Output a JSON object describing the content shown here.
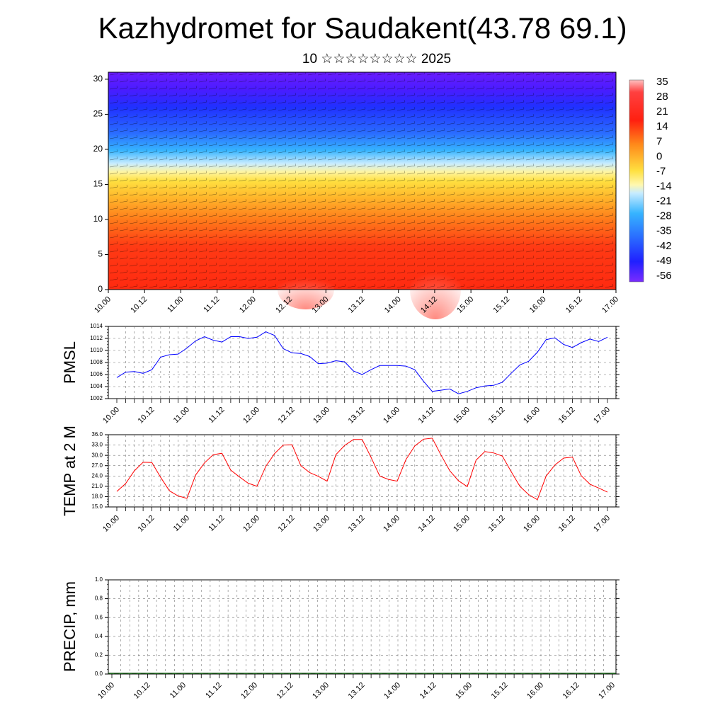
{
  "header": {
    "title": "Kazhydromet for Saudakent(43.78 69.1)",
    "subtitle": "10 ☆☆☆☆☆☆☆☆ 2025"
  },
  "chart_data": [
    {
      "type": "heatmap",
      "name": "upper-air-temperature-wind",
      "ylim": [
        0,
        31
      ],
      "yticks": [
        0,
        5,
        10,
        15,
        20,
        25,
        30
      ],
      "x_tick_labels": [
        "10.00",
        "10.12",
        "11.00",
        "11.12",
        "12.00",
        "12.12",
        "13.00",
        "13.12",
        "14.00",
        "14.12",
        "15.00",
        "15.12",
        "16.00",
        "16.12",
        "17.00"
      ],
      "colorbar_labels": [
        "35",
        "28",
        "21",
        "14",
        "7",
        "0",
        "-7",
        "-14",
        "-21",
        "-28",
        "-35",
        "-42",
        "-49",
        "-56"
      ],
      "colors": {
        "hot": "#ff3b1f",
        "warm": "#ffd23a",
        "cold": "#3aa8ff",
        "coldest": "#6a1cff"
      }
    },
    {
      "type": "line",
      "ylabel": "PMSL",
      "ylim": [
        1002,
        1014
      ],
      "yticks": [
        "1002",
        "1004",
        "1006",
        "1008",
        "1010",
        "1012",
        "1014"
      ],
      "x_tick_labels": [
        "10.00",
        "10.12",
        "11.00",
        "11.12",
        "12.00",
        "12.12",
        "13.00",
        "13.12",
        "14.00",
        "14.12",
        "15.00",
        "15.12",
        "16.00",
        "16.12",
        "17.00"
      ],
      "color": "#0000ff",
      "values": [
        1005.5,
        1006.4,
        1006.5,
        1006.2,
        1006.8,
        1008.9,
        1009.3,
        1009.4,
        1010.4,
        1011.6,
        1012.3,
        1011.7,
        1011.4,
        1012.3,
        1012.3,
        1012.0,
        1012.2,
        1013.1,
        1012.5,
        1010.3,
        1009.6,
        1009.5,
        1009.0,
        1007.8,
        1007.9,
        1008.3,
        1008.1,
        1006.6,
        1006.0,
        1006.8,
        1007.5,
        1007.5,
        1007.5,
        1007.4,
        1006.8,
        1004.9,
        1003.2,
        1003.4,
        1003.6,
        1002.8,
        1003.2,
        1003.8,
        1004.1,
        1004.2,
        1004.7,
        1006.2,
        1007.6,
        1008.2,
        1009.7,
        1011.8,
        1012.1,
        1011.0,
        1010.5,
        1011.3,
        1011.9,
        1011.5,
        1012.2
      ]
    },
    {
      "type": "line",
      "ylabel": "TEMP at 2 M",
      "ylim": [
        15,
        36
      ],
      "yticks": [
        "15.0",
        "18.0",
        "21.0",
        "24.0",
        "27.0",
        "30.0",
        "33.0",
        "36.0"
      ],
      "x_tick_labels": [
        "10.00",
        "10.12",
        "11.00",
        "11.12",
        "12.00",
        "12.12",
        "13.00",
        "13.12",
        "14.00",
        "14.12",
        "15.00",
        "15.12",
        "16.00",
        "16.12",
        "17.00"
      ],
      "color": "#ff0000",
      "values": [
        19.5,
        21.8,
        25.5,
        28.0,
        27.9,
        23.6,
        19.7,
        18.2,
        17.5,
        24.3,
        27.8,
        30.2,
        30.6,
        25.7,
        23.7,
        21.9,
        21.0,
        26.8,
        30.5,
        33.0,
        33.1,
        27.0,
        25.0,
        23.9,
        22.5,
        30.2,
        32.9,
        34.6,
        34.6,
        29.5,
        24.0,
        23.0,
        22.5,
        28.8,
        32.7,
        34.7,
        35.0,
        30.1,
        25.5,
        22.6,
        20.9,
        28.6,
        31.1,
        30.7,
        29.8,
        25.3,
        21.0,
        18.6,
        17.1,
        24.0,
        27.2,
        29.2,
        29.5,
        24.1,
        21.6,
        20.5,
        19.3
      ]
    },
    {
      "type": "bar",
      "ylabel": "PRECIP, mm",
      "ylim": [
        0,
        1
      ],
      "yticks": [
        "0.0",
        "0.2",
        "0.4",
        "0.6",
        "0.8",
        "1.0"
      ],
      "x_tick_labels": [
        "10.00",
        "10.12",
        "11.00",
        "11.12",
        "12.00",
        "12.12",
        "13.00",
        "13.12",
        "14.00",
        "14.12",
        "15.00",
        "15.12",
        "16.00",
        "16.12",
        "17.00"
      ],
      "values": [
        0,
        0,
        0,
        0,
        0,
        0,
        0,
        0,
        0,
        0,
        0,
        0,
        0,
        0,
        0,
        0,
        0,
        0,
        0,
        0,
        0,
        0,
        0,
        0,
        0,
        0,
        0,
        0,
        0,
        0,
        0,
        0,
        0,
        0,
        0,
        0,
        0,
        0,
        0,
        0,
        0,
        0,
        0,
        0,
        0,
        0,
        0,
        0,
        0,
        0,
        0,
        0,
        0,
        0,
        0,
        0,
        0
      ]
    }
  ]
}
